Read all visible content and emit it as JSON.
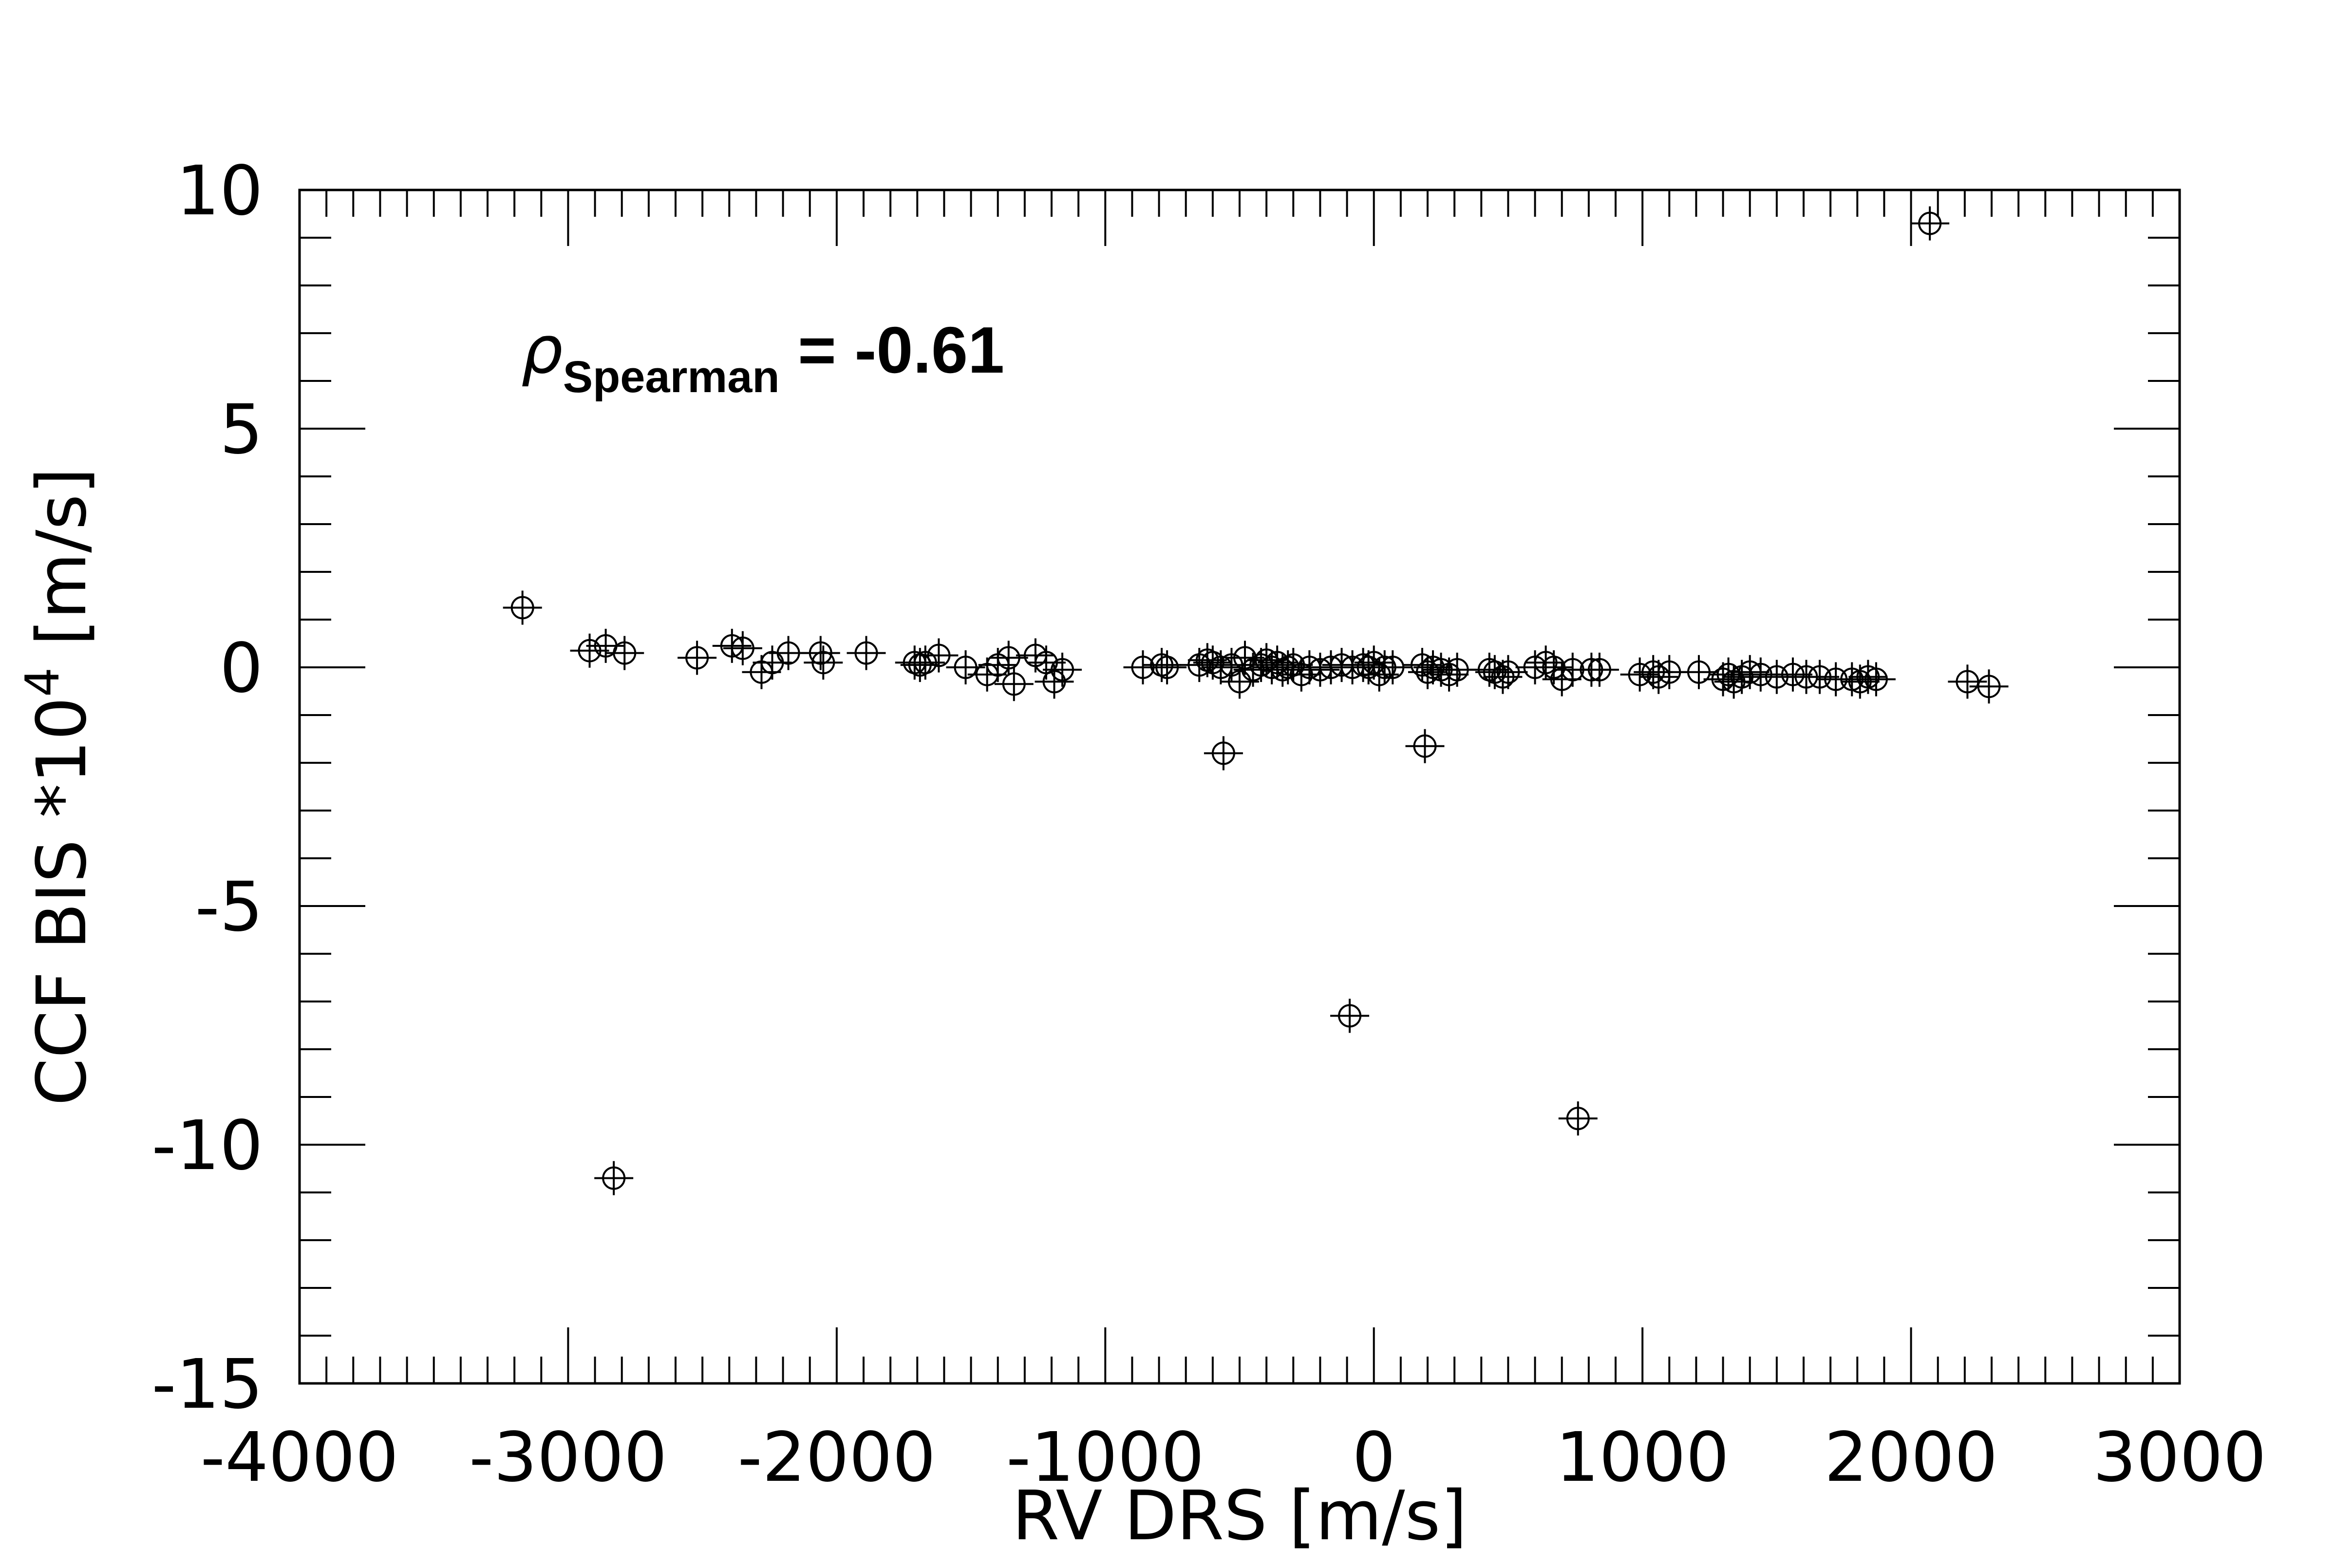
{
  "chart_data": {
    "type": "scatter",
    "title": "",
    "xlabel": "RV DRS [m/s]",
    "ylabel": {
      "main": "CCF BIS *10",
      "exponent": "4",
      "unit": " [m/s]"
    },
    "xlim": [
      -4000,
      3000
    ],
    "ylim": [
      -15,
      10
    ],
    "x_ticks": [
      -4000,
      -3000,
      -2000,
      -1000,
      0,
      1000,
      2000,
      3000
    ],
    "x_tick_labels": [
      "-4000",
      "-3000",
      "-2000",
      "-1000",
      "0",
      "1000",
      "2000",
      "3000"
    ],
    "y_ticks": [
      -15,
      -10,
      -5,
      0,
      5,
      10
    ],
    "y_tick_labels": [
      "-15",
      "-10",
      "-5",
      "0",
      "5",
      "10"
    ],
    "grid": false,
    "legend": "none",
    "marker": "open-circle-with-errorbars",
    "color": "#000000",
    "annotation": {
      "symbol": "ρ",
      "subscript": "Spearman",
      "text": " = -0.61"
    },
    "series": [
      {
        "x": [
          -3170,
          -2920,
          -2860,
          -2790,
          -2520,
          -2390,
          -2350,
          -2280,
          -2240,
          -2180,
          -2060,
          -2050,
          -1890,
          -1710,
          -1690,
          -1670,
          -1620,
          -1520,
          -1440,
          -1400,
          -1360,
          -1340,
          -1260,
          -1220,
          -1190,
          -1160,
          -860,
          -790,
          -770,
          -650,
          -620,
          -600,
          -570,
          -530,
          -500,
          -480,
          -450,
          -420,
          -400,
          -380,
          -360,
          -340,
          -320,
          -300,
          -270,
          -240,
          -200,
          -160,
          -120,
          -80,
          -40,
          -20,
          0,
          20,
          40,
          70,
          180,
          200,
          220,
          250,
          280,
          310,
          430,
          450,
          480,
          500,
          600,
          640,
          670,
          700,
          740,
          810,
          840,
          990,
          1040,
          1060,
          1100,
          1210,
          1300,
          1320,
          1340,
          1370,
          1400,
          1440,
          1500,
          1560,
          1610,
          1660,
          1720,
          1780,
          1810,
          1840,
          1870,
          2070,
          2210,
          2290,
          -2830,
          -560,
          -90,
          190,
          760
        ],
        "y": [
          1.25,
          0.35,
          0.45,
          0.3,
          0.2,
          0.45,
          0.4,
          -0.1,
          0.1,
          0.3,
          0.3,
          0.1,
          0.3,
          0.1,
          0.05,
          0.1,
          0.25,
          0.0,
          -0.15,
          0.05,
          0.2,
          -0.35,
          0.25,
          0.1,
          -0.3,
          -0.05,
          0.0,
          0.05,
          0.0,
          0.05,
          0.15,
          0.1,
          0.0,
          0.05,
          -0.3,
          0.2,
          -0.05,
          0.05,
          0.15,
          0.0,
          0.1,
          -0.05,
          0.0,
          0.05,
          -0.15,
          0.0,
          -0.05,
          0.0,
          0.05,
          0.0,
          0.05,
          0.0,
          0.1,
          -0.15,
          0.0,
          0.0,
          0.05,
          -0.1,
          0.0,
          -0.05,
          -0.15,
          -0.05,
          -0.05,
          -0.1,
          -0.2,
          -0.1,
          0.0,
          0.1,
          0.0,
          -0.25,
          -0.05,
          -0.05,
          -0.05,
          -0.15,
          -0.1,
          -0.2,
          -0.1,
          -0.1,
          -0.25,
          -0.15,
          -0.3,
          -0.2,
          -0.1,
          -0.15,
          -0.2,
          -0.15,
          -0.2,
          -0.2,
          -0.25,
          -0.25,
          -0.3,
          -0.2,
          -0.25,
          9.3,
          -0.3,
          -0.4,
          -10.7,
          -1.8,
          -7.3,
          -1.65,
          -9.45
        ]
      }
    ]
  }
}
